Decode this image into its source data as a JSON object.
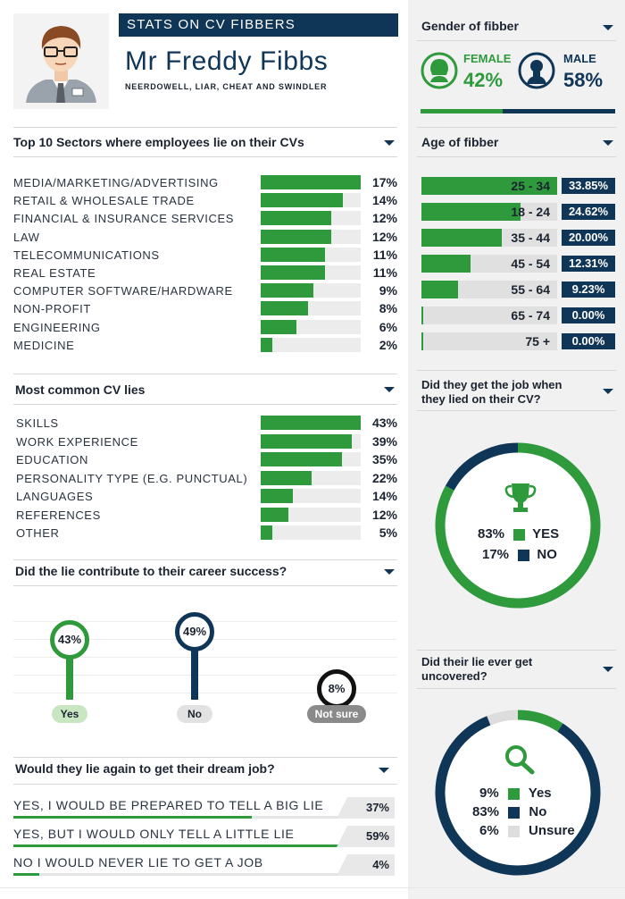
{
  "header": {
    "banner": "STATS ON CV FIBBERS",
    "name": "Mr Freddy Fibbs",
    "subtitle": "NEERDOWELL, LIAR, CHEAT AND SWINDLER"
  },
  "gender": {
    "title": "Gender of fibber",
    "female_label": "FEMALE",
    "female_value": "42%",
    "male_label": "MALE",
    "male_value": "58%",
    "female_share": 42,
    "colors": {
      "female": "#2e9a3c",
      "male": "#0f3557"
    }
  },
  "sectors": {
    "title": "Top 10 Sectors where employees lie on their CVs"
  },
  "age": {
    "title": "Age of fibber"
  },
  "lies": {
    "title": "Most common CV lies"
  },
  "job": {
    "title_line1": "Did they get the job when",
    "title_line2": "they lied on their CV?",
    "yes_value": "83%",
    "yes_label": "YES",
    "no_value": "17%",
    "no_label": "NO"
  },
  "success": {
    "title": "Did the lie contribute to their career success?"
  },
  "uncovered": {
    "title_line1": "Did their lie ever get",
    "title_line2": "uncovered?",
    "rows": [
      {
        "value": "9%",
        "label": "Yes"
      },
      {
        "value": "83%",
        "label": "No"
      },
      {
        "value": "6%",
        "label": "Unsure"
      }
    ]
  },
  "again": {
    "title": "Would they lie again to get their dream job?"
  },
  "chart_data": [
    {
      "type": "bar",
      "title": "Top 10 Sectors where employees lie on their CVs",
      "categories": [
        "MEDIA/MARKETING/ADVERTISING",
        "RETAIL & WHOLESALE TRADE",
        "FINANCIAL & INSURANCE SERVICES",
        "LAW",
        "TELECOMMUNICATIONS",
        "REAL ESTATE",
        "COMPUTER SOFTWARE/HARDWARE",
        "NON-PROFIT",
        "ENGINEERING",
        "MEDICINE"
      ],
      "values": [
        17,
        14,
        12,
        12,
        11,
        11,
        9,
        8,
        6,
        2
      ],
      "labels": [
        "17%",
        "14%",
        "12%",
        "12%",
        "11%",
        "11%",
        "9%",
        "8%",
        "6%",
        "2%"
      ],
      "xlim": [
        0,
        17
      ]
    },
    {
      "type": "bar",
      "title": "Age of fibber",
      "categories": [
        "25 - 34",
        "18 - 24",
        "35 - 44",
        "45 - 54",
        "55 - 64",
        "65 - 74",
        "75 +"
      ],
      "values": [
        33.85,
        24.62,
        20.0,
        12.31,
        9.23,
        0.0,
        0.0
      ],
      "labels": [
        "33.85%",
        "24.62%",
        "20.00%",
        "12.31%",
        "9.23%",
        "0.00%",
        "0.00%"
      ],
      "xlim": [
        0,
        33.85
      ]
    },
    {
      "type": "bar",
      "title": "Most common CV lies",
      "categories": [
        "SKILLS",
        "WORK EXPERIENCE",
        "EDUCATION",
        "PERSONALITY TYPE (E.G. PUNCTUAL)",
        "LANGUAGES",
        "REFERENCES",
        "OTHER"
      ],
      "values": [
        43,
        39,
        35,
        22,
        14,
        12,
        5
      ],
      "labels": [
        "43%",
        "39%",
        "35%",
        "22%",
        "14%",
        "12%",
        "5%"
      ],
      "xlim": [
        0,
        43
      ]
    },
    {
      "type": "pie",
      "title": "Did they get the job when they lied on their CV?",
      "categories": [
        "YES",
        "NO"
      ],
      "values": [
        83,
        17
      ],
      "colors": [
        "#2e9a3c",
        "#0f3557"
      ]
    },
    {
      "type": "bar",
      "title": "Did the lie contribute to their career success?",
      "categories": [
        "Yes",
        "No",
        "Not sure"
      ],
      "values": [
        43,
        49,
        8
      ],
      "labels": [
        "43%",
        "49%",
        "8%"
      ],
      "colors": [
        "#2e9a3c",
        "#0f3557",
        "#111111"
      ],
      "ylim": [
        0,
        49
      ]
    },
    {
      "type": "pie",
      "title": "Did their lie ever get uncovered?",
      "categories": [
        "Yes",
        "No",
        "Unsure"
      ],
      "values": [
        9,
        83,
        6
      ],
      "colors": [
        "#2e9a3c",
        "#0f3557",
        "#dddddd"
      ]
    },
    {
      "type": "bar",
      "title": "Would they lie again to get their dream job?",
      "categories": [
        "YES, I WOULD BE PREPARED TO TELL A BIG LIE",
        "YES, BUT I WOULD ONLY TELL A LITTLE LIE",
        "NO I WOULD NEVER LIE TO GET A JOB"
      ],
      "values": [
        37,
        59,
        4
      ],
      "labels": [
        "37%",
        "59%",
        "4%"
      ],
      "xlim": [
        0,
        59
      ]
    }
  ]
}
